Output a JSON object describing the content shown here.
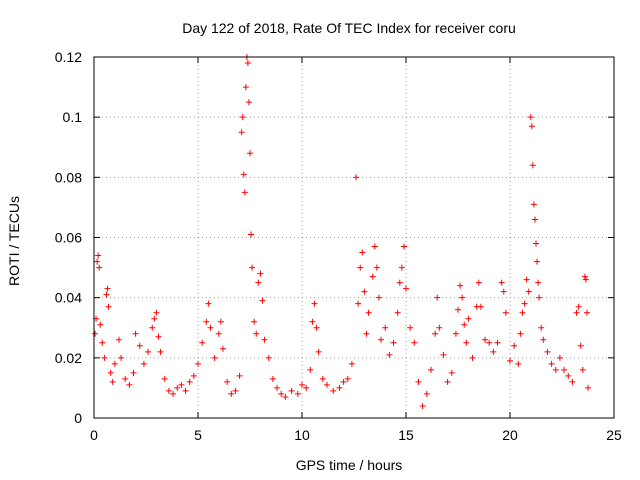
{
  "chart_data": {
    "type": "scatter",
    "title": "Day 122 of 2018, Rate Of TEC Index for receiver coru",
    "xlabel": "GPS time / hours",
    "ylabel": "ROTI / TECUs",
    "xlim": [
      0,
      25
    ],
    "ylim": [
      0,
      0.12
    ],
    "xticks": [
      0,
      5,
      10,
      15,
      20,
      25
    ],
    "xtick_labels": [
      "0",
      "5",
      "10",
      "15",
      "20",
      "25"
    ],
    "yticks": [
      0,
      0.02,
      0.04,
      0.06,
      0.08,
      0.1,
      0.12
    ],
    "ytick_labels": [
      "0",
      "0.02",
      "0.04",
      "0.06",
      "0.08",
      "0.1",
      "0.12"
    ],
    "grid": true,
    "marker": "+",
    "color": "#ff0000",
    "series": [
      {
        "name": "ROTI",
        "points": [
          [
            0.05,
            0.028
          ],
          [
            0.1,
            0.033
          ],
          [
            0.15,
            0.052
          ],
          [
            0.2,
            0.054
          ],
          [
            0.25,
            0.05
          ],
          [
            0.3,
            0.031
          ],
          [
            0.4,
            0.025
          ],
          [
            0.5,
            0.02
          ],
          [
            0.6,
            0.041
          ],
          [
            0.65,
            0.043
          ],
          [
            0.7,
            0.037
          ],
          [
            0.8,
            0.015
          ],
          [
            0.9,
            0.012
          ],
          [
            1.0,
            0.018
          ],
          [
            1.2,
            0.026
          ],
          [
            1.3,
            0.02
          ],
          [
            1.5,
            0.013
          ],
          [
            1.7,
            0.011
          ],
          [
            1.9,
            0.015
          ],
          [
            2.0,
            0.028
          ],
          [
            2.2,
            0.024
          ],
          [
            2.4,
            0.018
          ],
          [
            2.6,
            0.022
          ],
          [
            2.8,
            0.03
          ],
          [
            2.9,
            0.033
          ],
          [
            3.0,
            0.035
          ],
          [
            3.1,
            0.027
          ],
          [
            3.2,
            0.022
          ],
          [
            3.4,
            0.013
          ],
          [
            3.6,
            0.009
          ],
          [
            3.8,
            0.008
          ],
          [
            4.0,
            0.01
          ],
          [
            4.2,
            0.011
          ],
          [
            4.4,
            0.009
          ],
          [
            4.6,
            0.012
          ],
          [
            4.8,
            0.014
          ],
          [
            5.0,
            0.018
          ],
          [
            5.2,
            0.025
          ],
          [
            5.4,
            0.032
          ],
          [
            5.5,
            0.038
          ],
          [
            5.6,
            0.03
          ],
          [
            5.8,
            0.02
          ],
          [
            6.0,
            0.028
          ],
          [
            6.1,
            0.032
          ],
          [
            6.2,
            0.023
          ],
          [
            6.4,
            0.012
          ],
          [
            6.6,
            0.008
          ],
          [
            6.8,
            0.009
          ],
          [
            7.0,
            0.014
          ],
          [
            7.1,
            0.095
          ],
          [
            7.15,
            0.1
          ],
          [
            7.2,
            0.081
          ],
          [
            7.25,
            0.075
          ],
          [
            7.3,
            0.11
          ],
          [
            7.35,
            0.12
          ],
          [
            7.4,
            0.118
          ],
          [
            7.45,
            0.105
          ],
          [
            7.5,
            0.088
          ],
          [
            7.55,
            0.061
          ],
          [
            7.6,
            0.05
          ],
          [
            7.7,
            0.032
          ],
          [
            7.8,
            0.028
          ],
          [
            7.9,
            0.045
          ],
          [
            8.0,
            0.048
          ],
          [
            8.1,
            0.039
          ],
          [
            8.2,
            0.026
          ],
          [
            8.4,
            0.02
          ],
          [
            8.6,
            0.013
          ],
          [
            8.8,
            0.01
          ],
          [
            9.0,
            0.008
          ],
          [
            9.2,
            0.007
          ],
          [
            9.5,
            0.009
          ],
          [
            9.8,
            0.008
          ],
          [
            10.0,
            0.011
          ],
          [
            10.2,
            0.01
          ],
          [
            10.4,
            0.016
          ],
          [
            10.5,
            0.032
          ],
          [
            10.6,
            0.038
          ],
          [
            10.7,
            0.03
          ],
          [
            10.8,
            0.022
          ],
          [
            11.0,
            0.013
          ],
          [
            11.2,
            0.011
          ],
          [
            11.5,
            0.009
          ],
          [
            11.8,
            0.01
          ],
          [
            12.0,
            0.012
          ],
          [
            12.2,
            0.013
          ],
          [
            12.4,
            0.018
          ],
          [
            12.6,
            0.08
          ],
          [
            12.7,
            0.038
          ],
          [
            12.8,
            0.05
          ],
          [
            12.9,
            0.055
          ],
          [
            13.0,
            0.042
          ],
          [
            13.1,
            0.028
          ],
          [
            13.2,
            0.035
          ],
          [
            13.4,
            0.047
          ],
          [
            13.5,
            0.057
          ],
          [
            13.6,
            0.05
          ],
          [
            13.7,
            0.04
          ],
          [
            13.8,
            0.026
          ],
          [
            14.0,
            0.03
          ],
          [
            14.2,
            0.021
          ],
          [
            14.4,
            0.025
          ],
          [
            14.6,
            0.035
          ],
          [
            14.7,
            0.045
          ],
          [
            14.8,
            0.05
          ],
          [
            14.9,
            0.057
          ],
          [
            15.0,
            0.043
          ],
          [
            15.2,
            0.03
          ],
          [
            15.4,
            0.025
          ],
          [
            15.6,
            0.012
          ],
          [
            15.8,
            0.004
          ],
          [
            16.0,
            0.008
          ],
          [
            16.2,
            0.016
          ],
          [
            16.4,
            0.028
          ],
          [
            16.5,
            0.04
          ],
          [
            16.6,
            0.03
          ],
          [
            16.8,
            0.021
          ],
          [
            17.0,
            0.012
          ],
          [
            17.2,
            0.015
          ],
          [
            17.4,
            0.028
          ],
          [
            17.5,
            0.036
          ],
          [
            17.6,
            0.044
          ],
          [
            17.7,
            0.04
          ],
          [
            17.8,
            0.031
          ],
          [
            17.9,
            0.025
          ],
          [
            18.0,
            0.033
          ],
          [
            18.2,
            0.02
          ],
          [
            18.4,
            0.037
          ],
          [
            18.5,
            0.045
          ],
          [
            18.6,
            0.037
          ],
          [
            18.8,
            0.026
          ],
          [
            19.0,
            0.025
          ],
          [
            19.2,
            0.022
          ],
          [
            19.4,
            0.025
          ],
          [
            19.6,
            0.045
          ],
          [
            19.7,
            0.042
          ],
          [
            19.8,
            0.035
          ],
          [
            20.0,
            0.019
          ],
          [
            20.2,
            0.024
          ],
          [
            20.4,
            0.018
          ],
          [
            20.5,
            0.028
          ],
          [
            20.6,
            0.035
          ],
          [
            20.7,
            0.038
          ],
          [
            20.8,
            0.046
          ],
          [
            20.9,
            0.042
          ],
          [
            21.0,
            0.1
          ],
          [
            21.05,
            0.097
          ],
          [
            21.1,
            0.084
          ],
          [
            21.15,
            0.071
          ],
          [
            21.2,
            0.066
          ],
          [
            21.25,
            0.058
          ],
          [
            21.3,
            0.052
          ],
          [
            21.35,
            0.045
          ],
          [
            21.4,
            0.04
          ],
          [
            21.5,
            0.03
          ],
          [
            21.6,
            0.026
          ],
          [
            21.8,
            0.022
          ],
          [
            22.0,
            0.018
          ],
          [
            22.2,
            0.016
          ],
          [
            22.4,
            0.02
          ],
          [
            22.6,
            0.016
          ],
          [
            22.8,
            0.014
          ],
          [
            23.0,
            0.012
          ],
          [
            23.2,
            0.035
          ],
          [
            23.3,
            0.037
          ],
          [
            23.4,
            0.024
          ],
          [
            23.5,
            0.016
          ],
          [
            23.6,
            0.047
          ],
          [
            23.65,
            0.046
          ],
          [
            23.7,
            0.035
          ],
          [
            23.75,
            0.01
          ]
        ]
      }
    ]
  }
}
